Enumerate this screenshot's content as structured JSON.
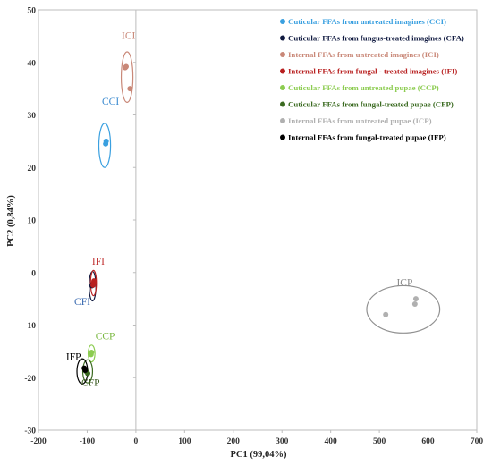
{
  "chart_data": {
    "type": "scatter",
    "xlabel": "PC1 (99,04%)",
    "ylabel": "PC2 (0,84%)",
    "xlim": [
      -200,
      700
    ],
    "ylim": [
      -30,
      50
    ],
    "xticks": [
      -200,
      -100,
      0,
      100,
      200,
      300,
      400,
      500,
      600,
      700
    ],
    "yticks": [
      -30,
      -20,
      -10,
      0,
      10,
      20,
      30,
      40,
      50
    ],
    "grid": false,
    "legend_position": "top-right",
    "series": [
      {
        "name": "Cuticular FFAs from untreated imagines (CCI)",
        "color": "#3aa0e0",
        "label": "CCI",
        "points": [
          [
            -62,
            24.5
          ],
          [
            -61,
            25
          ]
        ],
        "ellipse": {
          "cx": -64,
          "cy": 24.2,
          "rx": 12,
          "ry": 4.2
        }
      },
      {
        "name": "Cuticular FFAs from fungus-treated imagines (CFA)",
        "color": "#101a40",
        "label": "CFI",
        "points": [
          [
            -90,
            -2.5
          ],
          [
            -88,
            -2.2
          ]
        ],
        "ellipse": {
          "cx": -89,
          "cy": -2.6,
          "rx": 7,
          "ry": 2.8
        }
      },
      {
        "name": "Internal FFAs from untreated imagines (ICI)",
        "color": "#c98878",
        "label": "ICI",
        "points": [
          [
            -22,
            39
          ],
          [
            -20,
            39.2
          ],
          [
            -12,
            35
          ]
        ],
        "ellipse": {
          "cx": -18,
          "cy": 37.2,
          "rx": 12,
          "ry": 4.8
        }
      },
      {
        "name": "Internal FFAs from fungal - treated imagines (IFI)",
        "color": "#b82020",
        "label": "IFI",
        "points": [
          [
            -87,
            -2
          ],
          [
            -86,
            -1.6
          ],
          [
            -88,
            -2.4
          ]
        ],
        "ellipse": {
          "cx": -87,
          "cy": -2,
          "rx": 6,
          "ry": 2.4
        }
      },
      {
        "name": "Cuticular FFAs from untreated pupae (CCP)",
        "color": "#8ccc50",
        "label": "CCP",
        "points": [
          [
            -92,
            -15.6
          ],
          [
            -91,
            -15.2
          ]
        ],
        "ellipse": {
          "cx": -91,
          "cy": -15.4,
          "rx": 7,
          "ry": 1.6
        }
      },
      {
        "name": "Cuticular FFAs from fungal-treated pupae (CFP)",
        "color": "#3a6a20",
        "label": "CFP",
        "points": [
          [
            -102,
            -18.8
          ],
          [
            -99,
            -19.2
          ]
        ],
        "ellipse": {
          "cx": -99,
          "cy": -18.8,
          "rx": 10,
          "ry": 2.2
        }
      },
      {
        "name": "Internal FFAs from untreated pupae (ICP)",
        "color": "#b0b0b0",
        "label": "ICP",
        "points": [
          [
            513,
            -8
          ],
          [
            573,
            -6
          ],
          [
            575,
            -5
          ]
        ],
        "ellipse": {
          "cx": 549,
          "cy": -7,
          "rx": 75,
          "ry": 4.5
        }
      },
      {
        "name": "Internal FFAs from fungal-treated pupae (IFP)",
        "color": "#000000",
        "label": "IFP",
        "points": [
          [
            -106,
            -18.2
          ],
          [
            -104,
            -18.6
          ]
        ],
        "ellipse": {
          "cx": -110,
          "cy": -18.8,
          "rx": 11,
          "ry": 2.4
        }
      }
    ],
    "annotations": [
      {
        "text": "ICI",
        "x": -15,
        "y": 44.5,
        "color": "#c98878"
      },
      {
        "text": "CCI",
        "x": -52,
        "y": 32,
        "color": "#3a8ad0"
      },
      {
        "text": "IFI",
        "x": -77,
        "y": 1.5,
        "color": "#c03030"
      },
      {
        "text": "CFI",
        "x": -110,
        "y": -6.2,
        "color": "#3a6ab0"
      },
      {
        "text": "CCP",
        "x": -63,
        "y": -12.7,
        "color": "#7ab840"
      },
      {
        "text": "IFP",
        "x": -128,
        "y": -16.6,
        "color": "#000000"
      },
      {
        "text": "CFP",
        "x": -93,
        "y": -21.6,
        "color": "#3a5a20"
      },
      {
        "text": "ICP",
        "x": 552,
        "y": -2.5,
        "color": "#8a8a8a"
      }
    ]
  }
}
